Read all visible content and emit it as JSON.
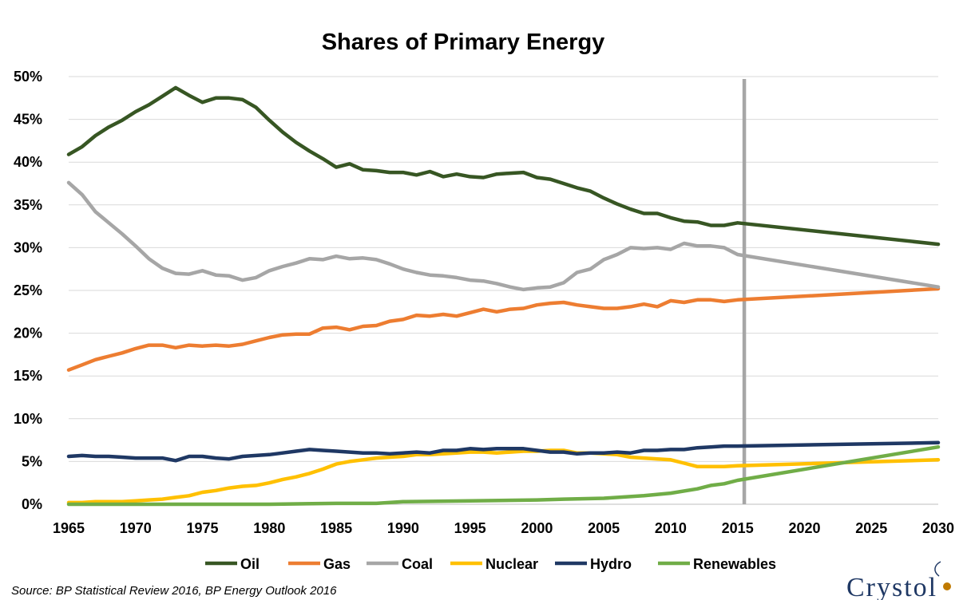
{
  "chart_data": {
    "type": "line",
    "title": "Shares of Primary Energy",
    "xlabel": "",
    "ylabel": "",
    "xlim": [
      1965,
      2030
    ],
    "ylim": [
      0,
      50
    ],
    "x_ticks": [
      "1965",
      "1970",
      "1975",
      "1980",
      "1985",
      "1990",
      "1995",
      "2000",
      "2005",
      "2010",
      "2015",
      "2020",
      "2025",
      "2030"
    ],
    "y_ticks": [
      "0%",
      "5%",
      "10%",
      "15%",
      "20%",
      "25%",
      "30%",
      "35%",
      "40%",
      "45%",
      "50%"
    ],
    "grid": "horizontal",
    "legend_position": "bottom",
    "reference_line_x": 2015.5,
    "reference_line_color": "#a6a6a6",
    "series": [
      {
        "name": "Oil",
        "color": "#375623",
        "x": [
          1965,
          1966,
          1967,
          1968,
          1969,
          1970,
          1971,
          1972,
          1973,
          1974,
          1975,
          1976,
          1977,
          1978,
          1979,
          1980,
          1981,
          1982,
          1983,
          1984,
          1985,
          1986,
          1987,
          1988,
          1989,
          1990,
          1991,
          1992,
          1993,
          1994,
          1995,
          1996,
          1997,
          1998,
          1999,
          2000,
          2001,
          2002,
          2003,
          2004,
          2005,
          2006,
          2007,
          2008,
          2009,
          2010,
          2011,
          2012,
          2013,
          2014,
          2015,
          2030
        ],
        "values": [
          40.9,
          41.8,
          43.1,
          44.1,
          44.9,
          45.9,
          46.7,
          47.7,
          48.7,
          47.8,
          47.0,
          47.5,
          47.5,
          47.3,
          46.4,
          44.9,
          43.5,
          42.3,
          41.3,
          40.4,
          39.4,
          39.8,
          39.1,
          39.0,
          38.8,
          38.8,
          38.5,
          38.9,
          38.3,
          38.6,
          38.3,
          38.2,
          38.6,
          38.7,
          38.8,
          38.2,
          38.0,
          37.5,
          37.0,
          36.6,
          35.8,
          35.1,
          34.5,
          34.0,
          34.0,
          33.5,
          33.1,
          33.0,
          32.6,
          32.6,
          32.9,
          30.4
        ]
      },
      {
        "name": "Gas",
        "color": "#ed7d31",
        "x": [
          1965,
          1966,
          1967,
          1968,
          1969,
          1970,
          1971,
          1972,
          1973,
          1974,
          1975,
          1976,
          1977,
          1978,
          1979,
          1980,
          1981,
          1982,
          1983,
          1984,
          1985,
          1986,
          1987,
          1988,
          1989,
          1990,
          1991,
          1992,
          1993,
          1994,
          1995,
          1996,
          1997,
          1998,
          1999,
          2000,
          2001,
          2002,
          2003,
          2004,
          2005,
          2006,
          2007,
          2008,
          2009,
          2010,
          2011,
          2012,
          2013,
          2014,
          2015,
          2030
        ],
        "values": [
          15.7,
          16.3,
          16.9,
          17.3,
          17.7,
          18.2,
          18.6,
          18.6,
          18.3,
          18.6,
          18.5,
          18.6,
          18.5,
          18.7,
          19.1,
          19.5,
          19.8,
          19.9,
          19.9,
          20.6,
          20.7,
          20.4,
          20.8,
          20.9,
          21.4,
          21.6,
          22.1,
          22.0,
          22.2,
          22.0,
          22.4,
          22.8,
          22.5,
          22.8,
          22.9,
          23.3,
          23.5,
          23.6,
          23.3,
          23.1,
          22.9,
          22.9,
          23.1,
          23.4,
          23.1,
          23.8,
          23.6,
          23.9,
          23.9,
          23.7,
          23.9,
          25.2
        ]
      },
      {
        "name": "Coal",
        "color": "#a6a6a6",
        "x": [
          1965,
          1966,
          1967,
          1968,
          1969,
          1970,
          1971,
          1972,
          1973,
          1974,
          1975,
          1976,
          1977,
          1978,
          1979,
          1980,
          1981,
          1982,
          1983,
          1984,
          1985,
          1986,
          1987,
          1988,
          1989,
          1990,
          1991,
          1992,
          1993,
          1994,
          1995,
          1996,
          1997,
          1998,
          1999,
          2000,
          2001,
          2002,
          2003,
          2004,
          2005,
          2006,
          2007,
          2008,
          2009,
          2010,
          2011,
          2012,
          2013,
          2014,
          2015,
          2030
        ],
        "values": [
          37.6,
          36.2,
          34.2,
          32.9,
          31.6,
          30.2,
          28.7,
          27.6,
          27.0,
          26.9,
          27.3,
          26.8,
          26.7,
          26.2,
          26.5,
          27.3,
          27.8,
          28.2,
          28.7,
          28.6,
          29.0,
          28.7,
          28.8,
          28.6,
          28.1,
          27.5,
          27.1,
          26.8,
          26.7,
          26.5,
          26.2,
          26.1,
          25.8,
          25.4,
          25.1,
          25.3,
          25.4,
          25.9,
          27.1,
          27.5,
          28.6,
          29.2,
          30.0,
          29.9,
          30.0,
          29.8,
          30.5,
          30.2,
          30.2,
          30.0,
          29.2,
          25.4
        ]
      },
      {
        "name": "Nuclear",
        "color": "#ffc000",
        "x": [
          1965,
          1966,
          1967,
          1968,
          1969,
          1970,
          1971,
          1972,
          1973,
          1974,
          1975,
          1976,
          1977,
          1978,
          1979,
          1980,
          1981,
          1982,
          1983,
          1984,
          1985,
          1986,
          1987,
          1988,
          1989,
          1990,
          1991,
          1992,
          1993,
          1994,
          1995,
          1996,
          1997,
          1998,
          1999,
          2000,
          2001,
          2002,
          2003,
          2004,
          2005,
          2006,
          2007,
          2008,
          2009,
          2010,
          2011,
          2012,
          2013,
          2014,
          2015,
          2030
        ],
        "values": [
          0.2,
          0.2,
          0.3,
          0.3,
          0.3,
          0.4,
          0.5,
          0.6,
          0.8,
          1.0,
          1.4,
          1.6,
          1.9,
          2.1,
          2.2,
          2.5,
          2.9,
          3.2,
          3.6,
          4.1,
          4.7,
          5.0,
          5.2,
          5.4,
          5.5,
          5.6,
          5.8,
          5.8,
          5.9,
          6.0,
          6.1,
          6.1,
          6.0,
          6.1,
          6.2,
          6.2,
          6.3,
          6.3,
          6.0,
          6.0,
          5.9,
          5.8,
          5.5,
          5.4,
          5.3,
          5.2,
          4.8,
          4.4,
          4.4,
          4.4,
          4.5,
          5.2
        ]
      },
      {
        "name": "Hydro",
        "color": "#1f3864",
        "x": [
          1965,
          1966,
          1967,
          1968,
          1969,
          1970,
          1971,
          1972,
          1973,
          1974,
          1975,
          1976,
          1977,
          1978,
          1979,
          1980,
          1981,
          1982,
          1983,
          1984,
          1985,
          1986,
          1987,
          1988,
          1989,
          1990,
          1991,
          1992,
          1993,
          1994,
          1995,
          1996,
          1997,
          1998,
          1999,
          2000,
          2001,
          2002,
          2003,
          2004,
          2005,
          2006,
          2007,
          2008,
          2009,
          2010,
          2011,
          2012,
          2013,
          2014,
          2015,
          2030
        ],
        "values": [
          5.6,
          5.7,
          5.6,
          5.6,
          5.5,
          5.4,
          5.4,
          5.4,
          5.1,
          5.6,
          5.6,
          5.4,
          5.3,
          5.6,
          5.7,
          5.8,
          6.0,
          6.2,
          6.4,
          6.3,
          6.2,
          6.1,
          6.0,
          6.0,
          5.9,
          6.0,
          6.1,
          6.0,
          6.3,
          6.3,
          6.5,
          6.4,
          6.5,
          6.5,
          6.5,
          6.3,
          6.1,
          6.1,
          5.9,
          6.0,
          6.0,
          6.1,
          6.0,
          6.3,
          6.3,
          6.4,
          6.4,
          6.6,
          6.7,
          6.8,
          6.8,
          7.2
        ]
      },
      {
        "name": "Renewables",
        "color": "#70ad47",
        "x": [
          1965,
          1970,
          1975,
          1980,
          1985,
          1988,
          1990,
          1995,
          2000,
          2002,
          2005,
          2008,
          2010,
          2012,
          2013,
          2014,
          2015,
          2030
        ],
        "values": [
          0.0,
          0.0,
          0.0,
          0.0,
          0.1,
          0.1,
          0.3,
          0.4,
          0.5,
          0.6,
          0.7,
          1.0,
          1.3,
          1.8,
          2.2,
          2.4,
          2.8,
          6.7
        ]
      }
    ]
  },
  "source_text": "Source: BP Statistical Review 2016, BP Energy Outlook 2016",
  "logo_text": "Crystol"
}
